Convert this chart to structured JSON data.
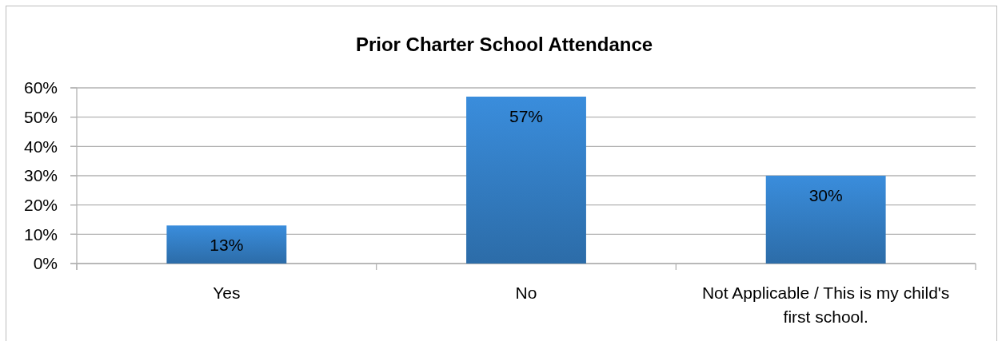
{
  "chart_data": {
    "type": "bar",
    "title": "Prior Charter School Attendance",
    "categories": [
      "Yes",
      "No",
      "Not Applicable / This is my child's first school."
    ],
    "values": [
      13,
      57,
      30
    ],
    "color": "#3a8ddc",
    "value_labels": [
      "13%",
      "57%",
      "30%"
    ],
    "ylim": [
      0,
      60
    ],
    "yticks": [
      {
        "value": 0,
        "label": "0%"
      },
      {
        "value": 10,
        "label": "10%"
      },
      {
        "value": 20,
        "label": "20%"
      },
      {
        "value": 30,
        "label": "30%"
      },
      {
        "value": 40,
        "label": "40%"
      },
      {
        "value": 50,
        "label": "50%"
      },
      {
        "value": 60,
        "label": "60%"
      }
    ],
    "grid": "y"
  }
}
